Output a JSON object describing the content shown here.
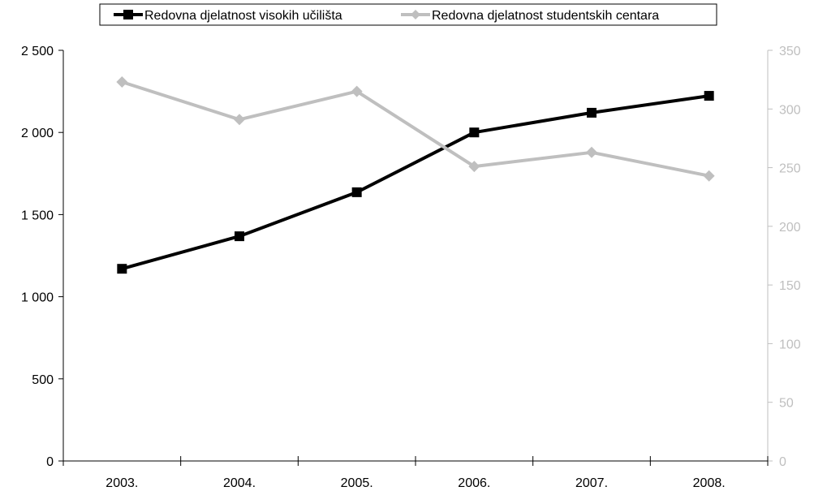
{
  "chart_data": {
    "type": "line",
    "categories": [
      "2003.",
      "2004.",
      "2005.",
      "2006.",
      "2007.",
      "2008."
    ],
    "series": [
      {
        "name": "Redovna djelatnost visokih učilišta",
        "axis": "left",
        "color": "#000000",
        "marker": "square",
        "values": [
          1170,
          1368,
          1636,
          2000,
          2120,
          2223
        ]
      },
      {
        "name": "Redovna djelatnost studentskih centara",
        "axis": "right",
        "color": "#bfbfbf",
        "marker": "diamond",
        "values": [
          323,
          291,
          315,
          251,
          263,
          243
        ]
      }
    ],
    "y_left": {
      "ylim": [
        0,
        2500
      ],
      "ticks": [
        0,
        500,
        1000,
        1500,
        2000,
        2500
      ],
      "tick_labels": [
        "0",
        "500",
        "1 000",
        "1 500",
        "2 000",
        "2 500"
      ]
    },
    "y_right": {
      "ylim": [
        0,
        350
      ],
      "ticks": [
        0,
        50,
        100,
        150,
        200,
        250,
        300,
        350
      ],
      "tick_labels": [
        "0",
        "50",
        "100",
        "150",
        "200",
        "250",
        "300",
        "350"
      ]
    },
    "title": "",
    "xlabel": "",
    "grid": false,
    "legend_position": "top-center"
  }
}
